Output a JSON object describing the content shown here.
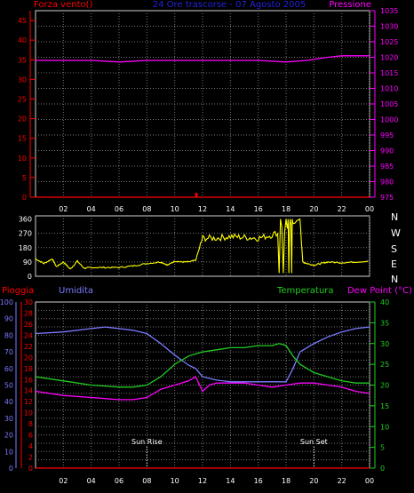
{
  "header": {
    "left": "Forza vento()",
    "center": "24 Ore trascorse - 07 Agosto 2005",
    "right": "Pressione"
  },
  "panel3_header": {
    "pioggia": "Pioggia",
    "umidita": "Umidita",
    "temperatura": "Temperatura",
    "dewpoint": "Dew Point (°C)"
  },
  "markers": {
    "sunrise": "Sun Rise",
    "sunset": "Sun Set"
  },
  "compass": [
    "N",
    "W",
    "S",
    "E",
    "N"
  ],
  "colors": {
    "background": "#000000",
    "pressure": "#ff00ff",
    "wind": "#ff0000",
    "direction": "#ffff00",
    "humidity": "#7b7bff",
    "temperature": "#22cc22",
    "dewpoint": "#ff00ff",
    "rain": "#ff0000",
    "center_title": "#2222dd",
    "axis_label": "#ffffff"
  },
  "chart_data": [
    {
      "type": "line",
      "name_labels": [
        "Forza vento()",
        "Pressione"
      ],
      "x_ticks": [
        "02",
        "04",
        "06",
        "08",
        "10",
        "12",
        "14",
        "16",
        "18",
        "20",
        "22",
        "00"
      ],
      "y_left_ticks": [
        0,
        5,
        10,
        15,
        20,
        25,
        30,
        35,
        40,
        45
      ],
      "y_left_range": [
        0,
        47.5
      ],
      "y_right_ticks": [
        975,
        980,
        985,
        990,
        995,
        1000,
        1005,
        1010,
        1015,
        1020,
        1025,
        1030,
        1035
      ],
      "y_right_range": [
        975,
        1035
      ],
      "x_range": [
        0,
        24
      ],
      "grid": true,
      "series": [
        {
          "name": "Pressione",
          "axis": "right",
          "x": [
            0,
            2,
            4,
            6,
            8,
            10,
            12,
            14,
            16,
            18,
            19.5,
            21,
            22,
            23,
            24
          ],
          "y": [
            1019,
            1019,
            1019,
            1018.5,
            1019,
            1019,
            1019,
            1019,
            1019,
            1018.5,
            1019,
            1020,
            1020.5,
            1020.5,
            1020.5
          ]
        },
        {
          "name": "Forza vento()",
          "axis": "left",
          "x": [
            0,
            11.5,
            11.5,
            11.6,
            11.6,
            24
          ],
          "y": [
            0,
            0,
            1,
            1,
            0,
            0
          ]
        }
      ]
    },
    {
      "type": "line",
      "y_ticks": [
        0,
        90,
        180,
        270,
        360
      ],
      "y_range": [
        0,
        380
      ],
      "x_range": [
        0,
        24
      ],
      "grid": true,
      "series": [
        {
          "name": "direction",
          "x": [
            0,
            0.6,
            1.2,
            1.5,
            2,
            2.5,
            3,
            3.5,
            4,
            5,
            6,
            7,
            8,
            9,
            9.5,
            10,
            10.5,
            11,
            11.5,
            12,
            13,
            14,
            15,
            16,
            17,
            18,
            18.5,
            19,
            19.2,
            19.5,
            20,
            20.5,
            21,
            22,
            23,
            24
          ],
          "y": [
            110,
            80,
            110,
            60,
            90,
            45,
            95,
            50,
            55,
            55,
            55,
            65,
            80,
            90,
            70,
            95,
            90,
            90,
            100,
            240,
            240,
            250,
            245,
            240,
            260,
            300,
            330,
            360,
            90,
            80,
            70,
            80,
            90,
            85,
            90,
            95
          ]
        }
      ]
    },
    {
      "type": "line",
      "name_labels": [
        "Pioggia",
        "Umidita",
        "Temperatura",
        "Dew Point (°C)"
      ],
      "x_ticks": [
        "02",
        "04",
        "06",
        "08",
        "10",
        "12",
        "14",
        "16",
        "18",
        "20",
        "22",
        "00"
      ],
      "y_humidity_ticks": [
        0,
        10,
        20,
        30,
        40,
        50,
        60,
        70,
        80,
        90,
        100
      ],
      "y_rain_ticks": [
        0,
        2,
        4,
        6,
        8,
        10,
        12,
        14,
        16,
        18,
        20,
        22,
        24,
        26,
        28,
        30
      ],
      "y_temp_ticks": [
        0,
        5,
        10,
        15,
        20,
        25,
        30,
        35,
        40
      ],
      "y_temp_range": [
        0,
        40
      ],
      "x_range": [
        0,
        24
      ],
      "grid": true,
      "series": [
        {
          "name": "Umidita",
          "axis": "humidity",
          "x": [
            0,
            2,
            4,
            5,
            6,
            7,
            8,
            9,
            10,
            11,
            11.5,
            12,
            13,
            14,
            15,
            16,
            17,
            18,
            18.5,
            19,
            20,
            21,
            22,
            23,
            24
          ],
          "y": [
            81,
            82,
            84,
            85,
            84,
            83,
            81,
            75,
            68,
            62,
            60,
            55,
            53,
            52,
            52,
            52,
            52,
            52,
            60,
            70,
            75,
            79,
            82,
            84,
            85
          ]
        },
        {
          "name": "Temperatura",
          "axis": "temp",
          "x": [
            0,
            2,
            4,
            6,
            7,
            8,
            9,
            10,
            11,
            12,
            13,
            14,
            15,
            16,
            17,
            17.5,
            18,
            18.5,
            19,
            20,
            21,
            22,
            23,
            24
          ],
          "y": [
            22,
            21,
            20,
            19.5,
            19.5,
            20,
            22,
            25,
            27,
            28,
            28.5,
            29,
            29,
            29.5,
            29.5,
            30,
            29.5,
            27,
            25,
            23,
            22,
            21,
            20.5,
            20.5
          ]
        },
        {
          "name": "Dew Point (°C)",
          "axis": "temp",
          "x": [
            0,
            2,
            4,
            6,
            7,
            8,
            9,
            10,
            11,
            11.5,
            12,
            12.5,
            13,
            14,
            15,
            16,
            17,
            18,
            19,
            20,
            21,
            22,
            23,
            24
          ],
          "y": [
            18.5,
            17.5,
            17,
            16.5,
            16.5,
            17,
            19,
            20,
            21,
            22,
            18.5,
            20,
            20.5,
            20.5,
            20.5,
            20,
            19.5,
            20,
            20.5,
            20.5,
            20,
            19.5,
            18.5,
            18
          ]
        },
        {
          "name": "Pioggia",
          "axis": "rain",
          "x": [
            0,
            24
          ],
          "y": [
            0,
            0
          ]
        }
      ]
    }
  ]
}
